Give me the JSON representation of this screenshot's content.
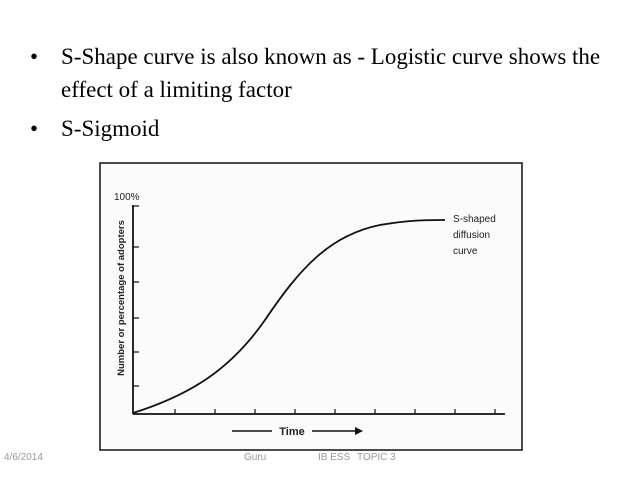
{
  "bullets": [
    "S-Shape curve is also known as - Logistic curve  shows the effect of a limiting factor",
    "S-Sigmoid"
  ],
  "figure": {
    "y_tick_label": "100%",
    "y_axis_label": "Number or percentage of adopters",
    "x_axis_label": "Time",
    "curve_label": [
      "S-shaped",
      "diffusion",
      "curve"
    ]
  },
  "footer": {
    "date": "4/6/2014",
    "author": "Guru",
    "course": "IB ESS",
    "topic": "TOPIC 3"
  }
}
